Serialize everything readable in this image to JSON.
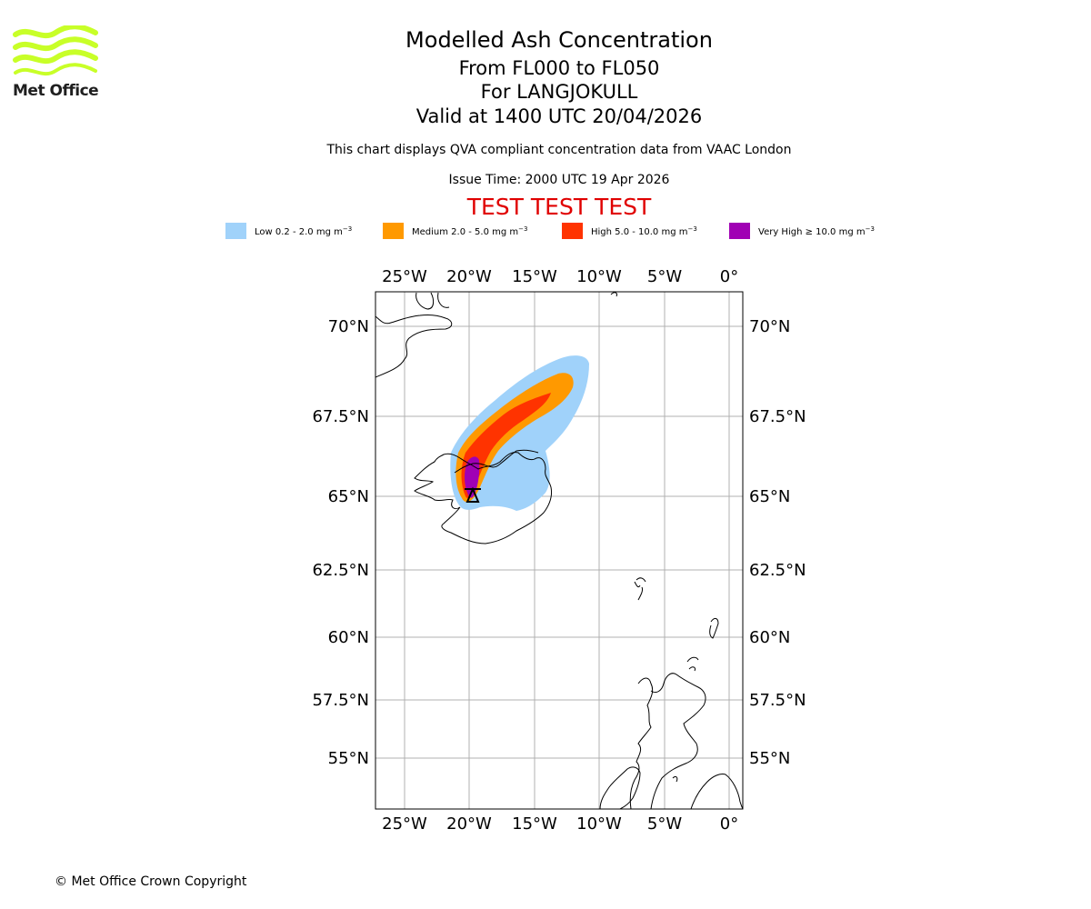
{
  "header": {
    "logo_text": "Met Office",
    "title": "Modelled Ash Concentration",
    "level_range": "From FL000 to FL050",
    "volcano": "For LANGJOKULL",
    "valid_time": "Valid at 1400 UTC 20/04/2026",
    "description": "This chart displays QVA compliant concentration data from VAAC London",
    "issue_time": "Issue Time: 2000 UTC 19 Apr 2026",
    "test_banner": "TEST TEST TEST"
  },
  "legend": [
    {
      "label": "Low 0.2 - 2.0 mg m",
      "color": "#a0d2fa"
    },
    {
      "label": "Medium 2.0 - 5.0 mg m",
      "color": "#ff9900"
    },
    {
      "label": "High 5.0 - 10.0 mg m",
      "color": "#ff3300"
    },
    {
      "label": "Very High  ≥  10.0 mg m",
      "color": "#a000b4"
    }
  ],
  "legend_unit_exponent": "−3",
  "map": {
    "lon_labels": [
      "25°W",
      "20°W",
      "15°W",
      "10°W",
      "5°W",
      "0°"
    ],
    "lat_labels": [
      "70°N",
      "67.5°N",
      "65°N",
      "62.5°N",
      "60°N",
      "57.5°N",
      "55°N"
    ],
    "source_marker": "volcano-source",
    "coastline_color": "#000000",
    "grid_color": "#b0b0b0"
  },
  "footer": {
    "copyright": "© Met Office Crown Copyright"
  }
}
